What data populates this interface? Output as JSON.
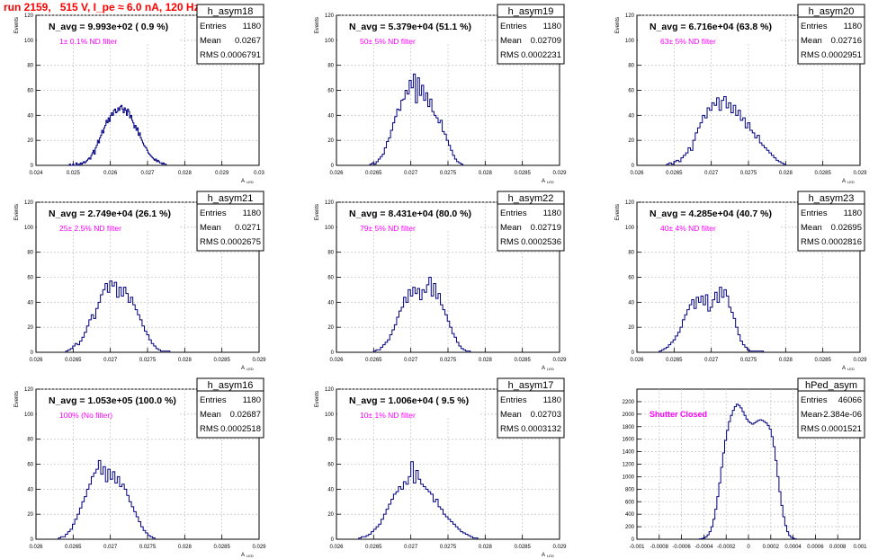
{
  "header": {
    "title": "run 2159,   515 V, I_pe ≈ 6.0 nA, 120 Hz"
  },
  "colors": {
    "histogram": "#000080",
    "title": "#ff0000",
    "annotation": "#ff00ff",
    "grid": "#c8c8c8"
  },
  "chart_data": [
    {
      "type": "bar",
      "name": "h_asym18",
      "ylabel": "Events",
      "xlabel": "A_LED",
      "xlim": [
        0.024,
        0.03
      ],
      "ylim": [
        0,
        120
      ],
      "xticks": [
        "0.024",
        "0.025",
        "0.026",
        "0.027",
        "0.028",
        "0.029",
        "0.03"
      ],
      "yticks": [
        "0",
        "20",
        "40",
        "60",
        "80",
        "100",
        "120"
      ],
      "navg": "N_avg = 9.993e+02 ( 0.9 %)",
      "filter": "1± 0.1% ND filter",
      "stats": {
        "entries": "1180",
        "mean": "0.0267",
        "rms": "0.0006791"
      },
      "bin_edges": [
        0.0249,
        0.0275
      ],
      "values": [
        1,
        0,
        0,
        1,
        0,
        0,
        2,
        1,
        1,
        0,
        2,
        1,
        2,
        3,
        2,
        3,
        4,
        5,
        6,
        5,
        8,
        10,
        12,
        9,
        14,
        16,
        20,
        18,
        22,
        24,
        28,
        26,
        30,
        32,
        36,
        34,
        38,
        35,
        40,
        42,
        40,
        44,
        45,
        42,
        43,
        46,
        44,
        47,
        48,
        45,
        42,
        46,
        44,
        40,
        45,
        43,
        38,
        40,
        36,
        34,
        30,
        32,
        28,
        30,
        24,
        26,
        22,
        20,
        18,
        16,
        15,
        14,
        12,
        10,
        9,
        8,
        7,
        6,
        5,
        4,
        5,
        3,
        4,
        3,
        2,
        2,
        1,
        2,
        1,
        1
      ]
    },
    {
      "type": "bar",
      "name": "h_asym19",
      "ylabel": "Events",
      "xlabel": "A_LED",
      "xlim": [
        0.026,
        0.029
      ],
      "ylim": [
        0,
        120
      ],
      "xticks": [
        "0.026",
        "0.0265",
        "0.027",
        "0.0275",
        "0.028",
        "0.0285",
        "0.029"
      ],
      "yticks": [
        "0",
        "20",
        "40",
        "60",
        "80",
        "100",
        "120"
      ],
      "navg": "N_avg = 5.379e+04 (51.1 %)",
      "filter": "50± 5% ND filter",
      "stats": {
        "entries": "1180",
        "mean": "0.02709",
        "rms": "0.0002231"
      },
      "bin_edges": [
        0.02645,
        0.0277
      ],
      "values": [
        1,
        2,
        1,
        3,
        5,
        7,
        9,
        14,
        19,
        22,
        28,
        34,
        39,
        45,
        44,
        52,
        53,
        60,
        57,
        68,
        62,
        73,
        50,
        70,
        56,
        64,
        52,
        58,
        47,
        53,
        43,
        40,
        38,
        34,
        36,
        27,
        25,
        20,
        16,
        12,
        8,
        5,
        3,
        2,
        1
      ]
    },
    {
      "type": "bar",
      "name": "h_asym20",
      "ylabel": "Events",
      "xlabel": "A_LED",
      "xlim": [
        0.026,
        0.029
      ],
      "ylim": [
        0,
        120
      ],
      "xticks": [
        "0.026",
        "0.0265",
        "0.027",
        "0.0275",
        "0.028",
        "0.0285",
        "0.029"
      ],
      "yticks": [
        "0",
        "20",
        "40",
        "60",
        "80",
        "100",
        "120"
      ],
      "navg": "N_avg = 6.716e+04 (63.8 %)",
      "filter": "63± 5% ND filter",
      "stats": {
        "entries": "1180",
        "mean": "0.02716",
        "rms": "0.0002951"
      },
      "bin_edges": [
        0.0264,
        0.028
      ],
      "values": [
        1,
        2,
        1,
        3,
        4,
        3,
        6,
        8,
        10,
        14,
        12,
        20,
        26,
        30,
        34,
        40,
        38,
        46,
        44,
        50,
        48,
        54,
        44,
        52,
        55,
        46,
        50,
        42,
        48,
        40,
        44,
        36,
        38,
        30,
        34,
        28,
        26,
        22,
        24,
        18,
        16,
        14,
        12,
        10,
        8,
        6,
        4,
        3,
        2,
        1
      ]
    },
    {
      "type": "bar",
      "name": "h_asym21",
      "ylabel": "Events",
      "xlabel": "A_LED",
      "xlim": [
        0.026,
        0.029
      ],
      "ylim": [
        0,
        120
      ],
      "xticks": [
        "0.026",
        "0.0265",
        "0.027",
        "0.0275",
        "0.028",
        "0.0285",
        "0.029"
      ],
      "yticks": [
        "0",
        "20",
        "40",
        "60",
        "80",
        "100",
        "120"
      ],
      "navg": "N_avg = 2.749e+04 (26.1 %)",
      "filter": "25± 2.5% ND filter",
      "stats": {
        "entries": "1180",
        "mean": "0.0271",
        "rms": "0.0002675"
      },
      "bin_edges": [
        0.0264,
        0.0278
      ],
      "values": [
        1,
        2,
        3,
        5,
        7,
        6,
        9,
        12,
        16,
        21,
        26,
        30,
        27,
        35,
        40,
        46,
        50,
        55,
        48,
        57,
        53,
        56,
        44,
        52,
        45,
        52,
        47,
        40,
        44,
        38,
        34,
        30,
        26,
        21,
        17,
        14,
        10,
        7,
        5,
        3,
        2,
        1,
        1,
        1,
        1
      ]
    },
    {
      "type": "bar",
      "name": "h_asym22",
      "ylabel": "Events",
      "xlabel": "A_LED",
      "xlim": [
        0.026,
        0.029
      ],
      "ylim": [
        0,
        120
      ],
      "xticks": [
        "0.026",
        "0.0265",
        "0.027",
        "0.0275",
        "0.028",
        "0.0285",
        "0.029"
      ],
      "yticks": [
        "0",
        "20",
        "40",
        "60",
        "80",
        "100",
        "120"
      ],
      "navg": "N_avg = 8.431e+04 (80.0 %)",
      "filter": "79± 5% ND filter",
      "stats": {
        "entries": "1180",
        "mean": "0.02719",
        "rms": "0.0002536"
      },
      "bin_edges": [
        0.0265,
        0.0278
      ],
      "values": [
        1,
        2,
        2,
        4,
        6,
        8,
        10,
        14,
        18,
        22,
        28,
        33,
        36,
        44,
        40,
        50,
        45,
        52,
        47,
        51,
        42,
        50,
        48,
        54,
        60,
        45,
        55,
        43,
        47,
        38,
        34,
        30,
        25,
        20,
        15,
        12,
        8,
        5,
        3,
        2,
        1,
        1
      ]
    },
    {
      "type": "bar",
      "name": "h_asym23",
      "ylabel": "Events",
      "xlabel": "A_LED",
      "xlim": [
        0.026,
        0.029
      ],
      "ylim": [
        0,
        120
      ],
      "xticks": [
        "0.026",
        "0.0265",
        "0.027",
        "0.0275",
        "0.028",
        "0.0285",
        "0.029"
      ],
      "yticks": [
        "0",
        "20",
        "40",
        "60",
        "80",
        "100",
        "120"
      ],
      "navg": "N_avg = 4.285e+04 (40.7 %)",
      "filter": "40± 4% ND filter",
      "stats": {
        "entries": "1180",
        "mean": "0.02695",
        "rms": "0.0002816"
      },
      "bin_edges": [
        0.0263,
        0.0277
      ],
      "values": [
        1,
        2,
        3,
        4,
        6,
        8,
        10,
        13,
        16,
        20,
        26,
        30,
        34,
        38,
        42,
        35,
        44,
        40,
        45,
        38,
        46,
        33,
        36,
        42,
        48,
        40,
        52,
        44,
        50,
        45,
        36,
        32,
        27,
        20,
        14,
        9,
        6,
        4,
        2,
        1,
        1,
        1,
        1,
        1,
        1
      ]
    },
    {
      "type": "bar",
      "name": "h_asym16",
      "ylabel": "Events",
      "xlabel": "A_LED",
      "xlim": [
        0.026,
        0.029
      ],
      "ylim": [
        0,
        120
      ],
      "xticks": [
        "0.026",
        "0.0265",
        "0.027",
        "0.0275",
        "0.028",
        "0.0285",
        "0.029"
      ],
      "yticks": [
        "0",
        "20",
        "40",
        "60",
        "80",
        "100",
        "120"
      ],
      "navg": "N_avg = 1.053e+05 (100.0 %)",
      "filter": "100% (No filter)",
      "stats": {
        "entries": "1180",
        "mean": "0.02687",
        "rms": "0.0002518"
      },
      "bin_edges": [
        0.0263,
        0.0276
      ],
      "values": [
        1,
        2,
        2,
        4,
        6,
        8,
        12,
        16,
        20,
        25,
        30,
        34,
        40,
        44,
        50,
        53,
        56,
        63,
        52,
        58,
        46,
        56,
        48,
        54,
        45,
        50,
        42,
        44,
        40,
        35,
        30,
        26,
        22,
        18,
        14,
        10,
        7,
        5,
        3,
        2,
        1
      ]
    },
    {
      "type": "bar",
      "name": "h_asym17",
      "ylabel": "Events",
      "xlabel": "A_LED",
      "xlim": [
        0.026,
        0.029
      ],
      "ylim": [
        0,
        120
      ],
      "xticks": [
        "0.026",
        "0.0265",
        "0.027",
        "0.0275",
        "0.028",
        "0.0285",
        "0.029"
      ],
      "yticks": [
        "0",
        "20",
        "40",
        "60",
        "80",
        "100",
        "120"
      ],
      "navg": "N_avg = 1.006e+04 ( 9.5 %)",
      "filter": "10± 1% ND filter",
      "stats": {
        "entries": "1180",
        "mean": "0.02703",
        "rms": "0.0003132"
      },
      "bin_edges": [
        0.0263,
        0.0279
      ],
      "values": [
        1,
        2,
        2,
        3,
        4,
        6,
        8,
        10,
        12,
        16,
        20,
        24,
        28,
        32,
        36,
        38,
        42,
        40,
        46,
        44,
        50,
        62,
        45,
        55,
        48,
        44,
        42,
        40,
        38,
        36,
        30,
        32,
        26,
        24,
        20,
        18,
        16,
        14,
        12,
        10,
        8,
        6,
        5,
        4,
        3,
        2,
        1,
        1
      ]
    },
    {
      "type": "bar",
      "name": "hPed_asym",
      "ylabel": "",
      "xlabel": "",
      "xlim": [
        -0.001,
        0.001
      ],
      "ylim": [
        0,
        2400
      ],
      "xticks": [
        "-0.001",
        "-0.0008",
        "-0.0006",
        "-0.0004",
        "-0.0002",
        "0",
        "0.0002",
        "0.0004",
        "0.0006",
        "0.0008",
        "0.001"
      ],
      "yticks": [
        "0",
        "200",
        "400",
        "600",
        "800",
        "1000",
        "1200",
        "1400",
        "1600",
        "1800",
        "2000",
        "2200"
      ],
      "navg": "",
      "filter": "Shutter Closed",
      "stats": {
        "entries": "46066",
        "mean": "-2.384e-06",
        "rms": "0.0001521"
      },
      "bin_edges": [
        -0.00044,
        0.00043
      ],
      "values": [
        5,
        10,
        20,
        40,
        70,
        120,
        200,
        320,
        480,
        680,
        900,
        1150,
        1380,
        1580,
        1740,
        1880,
        1980,
        2060,
        2120,
        2160,
        2140,
        2100,
        2040,
        1980,
        1920,
        1880,
        1860,
        1840,
        1860,
        1880,
        1900,
        1910,
        1900,
        1880,
        1860,
        1820,
        1760,
        1640,
        1480,
        1260,
        1000,
        760,
        540,
        360,
        220,
        120,
        60,
        30,
        15,
        5
      ]
    }
  ]
}
